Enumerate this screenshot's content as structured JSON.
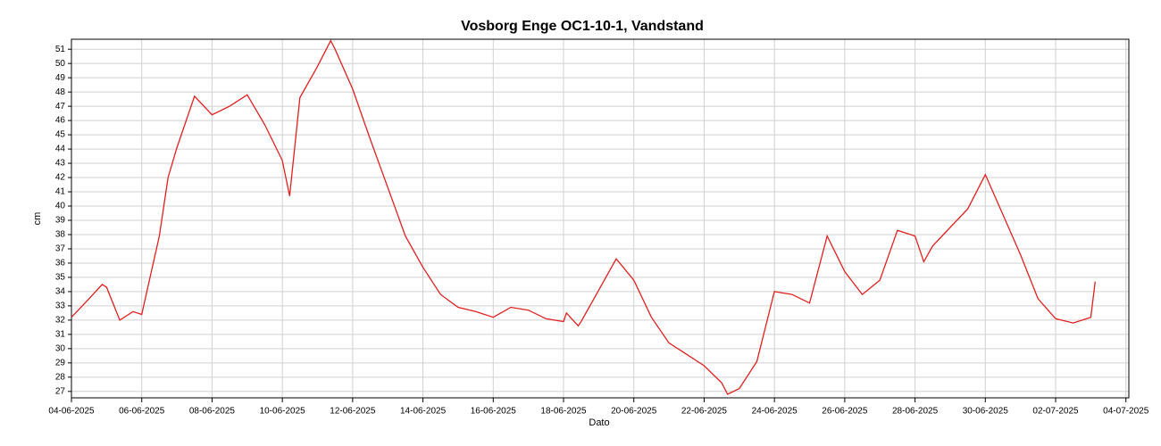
{
  "chart_data": {
    "type": "line",
    "title": "Vosborg Enge OC1-10-1, Vandstand",
    "x_label": "Dato",
    "y_label": "cm",
    "x": [
      "2025-06-04T00:00",
      "2025-06-04T12:00",
      "2025-06-04T21:00",
      "2025-06-05T00:00",
      "2025-06-05T09:00",
      "2025-06-05T18:00",
      "2025-06-06T00:00",
      "2025-06-06T12:00",
      "2025-06-06T18:00",
      "2025-06-07T00:00",
      "2025-06-07T12:00",
      "2025-06-08T00:00",
      "2025-06-08T12:00",
      "2025-06-09T00:00",
      "2025-06-09T12:00",
      "2025-06-10T00:00",
      "2025-06-10T05:00",
      "2025-06-10T12:00",
      "2025-06-11T00:00",
      "2025-06-11T09:00",
      "2025-06-11T12:00",
      "2025-06-12T00:00",
      "2025-06-12T12:00",
      "2025-06-13T00:00",
      "2025-06-13T12:00",
      "2025-06-14T00:00",
      "2025-06-14T12:00",
      "2025-06-15T00:00",
      "2025-06-15T12:00",
      "2025-06-16T00:00",
      "2025-06-16T12:00",
      "2025-06-17T00:00",
      "2025-06-17T12:00",
      "2025-06-18T00:00",
      "2025-06-18T02:00",
      "2025-06-18T10:00",
      "2025-06-18T12:00",
      "2025-06-19T00:00",
      "2025-06-19T12:00",
      "2025-06-20T00:00",
      "2025-06-20T12:00",
      "2025-06-21T00:00",
      "2025-06-21T12:00",
      "2025-06-22T00:00",
      "2025-06-22T12:00",
      "2025-06-22T16:00",
      "2025-06-23T00:00",
      "2025-06-23T12:00",
      "2025-06-24T00:00",
      "2025-06-24T12:00",
      "2025-06-25T00:00",
      "2025-06-25T12:00",
      "2025-06-26T00:00",
      "2025-06-26T12:00",
      "2025-06-27T00:00",
      "2025-06-27T12:00",
      "2025-06-28T00:00",
      "2025-06-28T06:00",
      "2025-06-28T12:00",
      "2025-06-29T00:00",
      "2025-06-29T12:00",
      "2025-06-30T00:00",
      "2025-06-30T12:00",
      "2025-07-01T00:00",
      "2025-07-01T12:00",
      "2025-07-02T00:00",
      "2025-07-02T12:00",
      "2025-07-03T00:00",
      "2025-07-03T03:00"
    ],
    "series": [
      {
        "name": "Vandstand",
        "color": "#e02020",
        "values": [
          32.2,
          33.5,
          34.5,
          34.3,
          32.0,
          32.6,
          32.4,
          37.9,
          42.0,
          44.1,
          47.7,
          46.4,
          47.0,
          47.8,
          45.7,
          43.2,
          40.7,
          47.6,
          49.8,
          51.6,
          51.0,
          48.2,
          44.7,
          41.3,
          37.9,
          35.7,
          33.8,
          32.9,
          32.6,
          32.2,
          32.9,
          32.7,
          32.1,
          31.9,
          32.5,
          31.6,
          31.9,
          34.1,
          36.3,
          34.8,
          32.2,
          30.4,
          29.6,
          28.8,
          27.6,
          26.8,
          27.2,
          29.1,
          34.0,
          33.8,
          33.2,
          37.9,
          35.4,
          33.8,
          34.8,
          38.3,
          37.9,
          36.1,
          37.2,
          38.5,
          39.8,
          42.2,
          39.4,
          36.6,
          33.5,
          32.1,
          31.8,
          32.2,
          34.7
        ]
      }
    ],
    "xlim": [
      "2025-06-04T00:00",
      "2025-07-04T02:00"
    ],
    "xticks": [
      {
        "value": "2025-06-04",
        "label": "04-06-2025"
      },
      {
        "value": "2025-06-06",
        "label": "06-06-2025"
      },
      {
        "value": "2025-06-08",
        "label": "08-06-2025"
      },
      {
        "value": "2025-06-10",
        "label": "10-06-2025"
      },
      {
        "value": "2025-06-12",
        "label": "12-06-2025"
      },
      {
        "value": "2025-06-14",
        "label": "14-06-2025"
      },
      {
        "value": "2025-06-16",
        "label": "16-06-2025"
      },
      {
        "value": "2025-06-18",
        "label": "18-06-2025"
      },
      {
        "value": "2025-06-20",
        "label": "20-06-2025"
      },
      {
        "value": "2025-06-22",
        "label": "22-06-2025"
      },
      {
        "value": "2025-06-24",
        "label": "24-06-2025"
      },
      {
        "value": "2025-06-26",
        "label": "26-06-2025"
      },
      {
        "value": "2025-06-28",
        "label": "28-06-2025"
      },
      {
        "value": "2025-06-30",
        "label": "30-06-2025"
      },
      {
        "value": "2025-07-02",
        "label": "02-07-2025"
      },
      {
        "value": "2025-07-04",
        "label": "04-07-2025"
      }
    ],
    "ylim": [
      26.55,
      51.7
    ],
    "yticks": [
      27,
      28,
      29,
      30,
      31,
      32,
      33,
      34,
      35,
      36,
      37,
      38,
      39,
      40,
      41,
      42,
      43,
      44,
      45,
      46,
      47,
      48,
      49,
      50,
      51
    ],
    "grid": true
  }
}
